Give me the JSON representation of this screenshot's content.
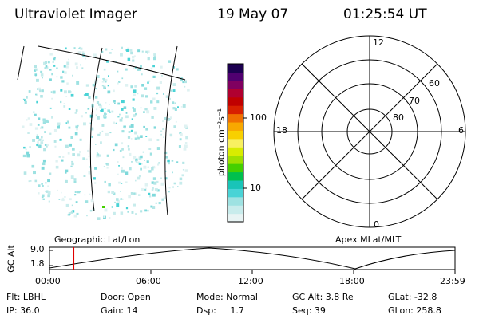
{
  "header": {
    "title": "Ultraviolet Imager",
    "date": "19 May 07",
    "time": "01:25:54 UT"
  },
  "colorbar": {
    "label": "photon cm⁻²s⁻¹",
    "ticks": [
      "100",
      "10"
    ],
    "colors": [
      "#e8f4f4",
      "#c8ecec",
      "#9ee2e2",
      "#49d3d6",
      "#19c4b8",
      "#00c04e",
      "#44d000",
      "#9ee000",
      "#d8ec00",
      "#f8f060",
      "#f8d000",
      "#f8a800",
      "#f07000",
      "#d82000",
      "#c00000",
      "#b00030",
      "#800060",
      "#500070",
      "#1c0050"
    ]
  },
  "polar": {
    "lat_labels": [
      "60",
      "70",
      "80"
    ],
    "mlt_labels": {
      "top": "12",
      "left": "18",
      "right": "6",
      "bottom": "0"
    }
  },
  "timeline": {
    "title_left": "Geographic Lat/Lon",
    "title_right": "Apex MLat/MLT",
    "y_label": "GC Alt",
    "y_ticks": [
      "9.0",
      "1.8"
    ],
    "x_ticks": [
      "00:00",
      "06:00",
      "12:00",
      "18:00",
      "23:59"
    ],
    "marker_time": "01:25:54",
    "marker_color": "#e00000"
  },
  "info": {
    "flt": "Flt: LBHL",
    "door": "Door: Open",
    "mode": "Mode: Normal",
    "gc_alt": "GC Alt: 3.8 Re",
    "glat": "GLat: -32.8",
    "ip": "IP: 36.0",
    "gain": "Gain: 14",
    "dsp": "Dsp:     1.7",
    "seq": "Seq: 39",
    "glon": "GLon: 258.8"
  }
}
